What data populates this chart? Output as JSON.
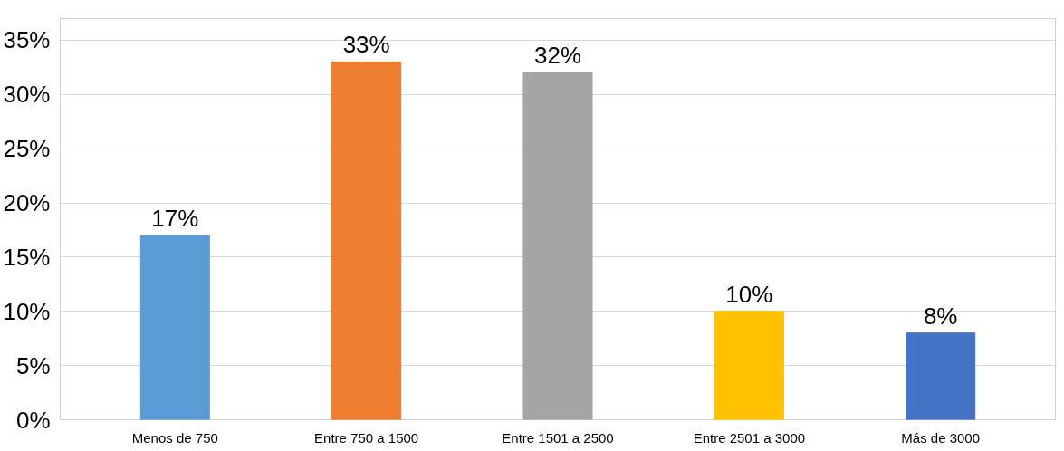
{
  "chart_data": {
    "type": "bar",
    "categories": [
      "Menos de 750",
      "Entre 750 a 1500",
      "Entre 1501 a 2500",
      "Entre 2501 a 3000",
      "Más de 3000"
    ],
    "values": [
      17,
      33,
      32,
      10,
      8
    ],
    "colors": [
      "#5b9bd5",
      "#ed7d31",
      "#a5a5a5",
      "#ffc000",
      "#4472c4"
    ],
    "value_labels": [
      "17%",
      "33%",
      "32%",
      "10%",
      "8%"
    ],
    "ylim": [
      0,
      37
    ],
    "yticks": [
      {
        "value": 0,
        "label": "0%"
      },
      {
        "value": 5,
        "label": "5%"
      },
      {
        "value": 10,
        "label": "10%"
      },
      {
        "value": 15,
        "label": "15%"
      },
      {
        "value": 20,
        "label": "20%"
      },
      {
        "value": 25,
        "label": "25%"
      },
      {
        "value": 30,
        "label": "30%"
      },
      {
        "value": 35,
        "label": "35%"
      }
    ],
    "grid": "y"
  }
}
